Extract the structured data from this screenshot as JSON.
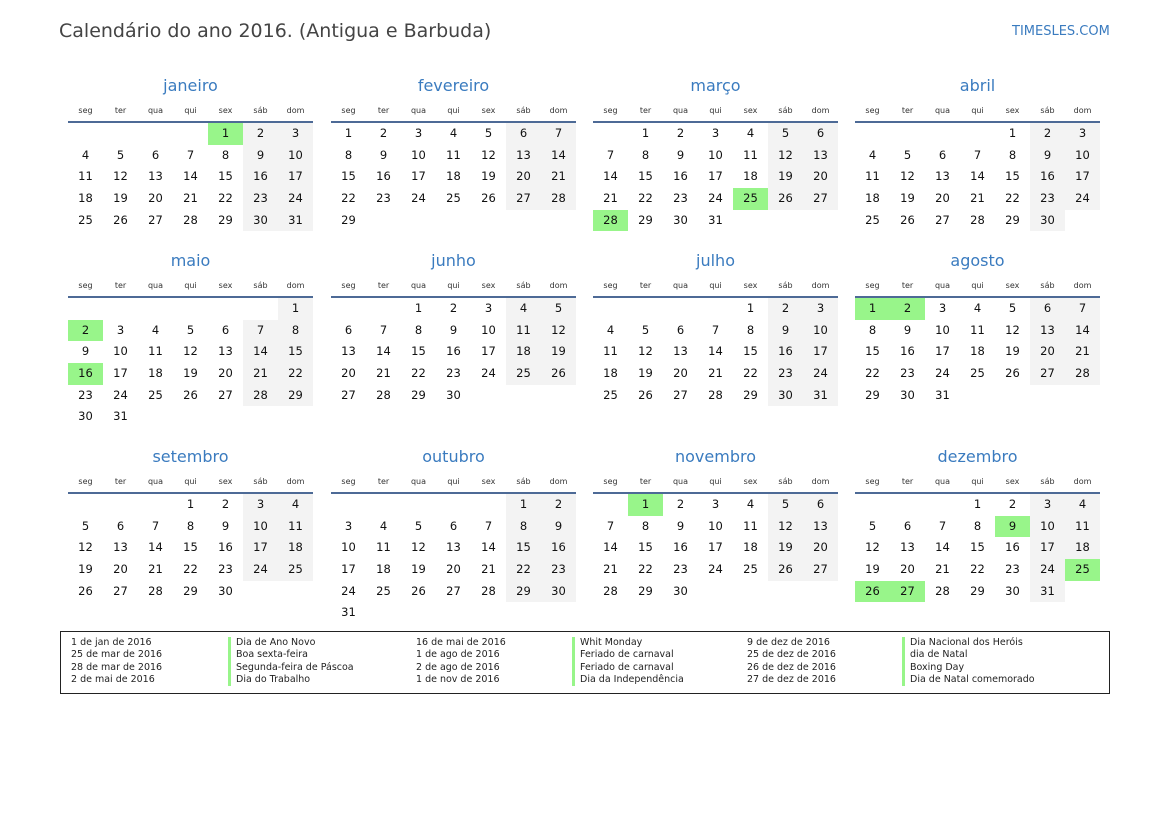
{
  "header": {
    "title": "Calendário do ano 2016. (Antigua e Barbuda)",
    "brand": "TIMESLES.COM"
  },
  "weekdays": [
    "seg",
    "ter",
    "qua",
    "qui",
    "sex",
    "sáb",
    "dom"
  ],
  "colors": {
    "accent": "#3a7bbf",
    "holiday": "#98f58a",
    "weekend": "#f3f3f3"
  },
  "months": [
    {
      "name": "janeiro",
      "first_weekday": 4,
      "days": 31,
      "holidays": [
        1
      ]
    },
    {
      "name": "fevereiro",
      "first_weekday": 0,
      "days": 29,
      "holidays": []
    },
    {
      "name": "março",
      "first_weekday": 1,
      "days": 31,
      "holidays": [
        25,
        28
      ]
    },
    {
      "name": "abril",
      "first_weekday": 4,
      "days": 30,
      "holidays": []
    },
    {
      "name": "maio",
      "first_weekday": 6,
      "days": 31,
      "holidays": [
        2,
        16
      ]
    },
    {
      "name": "junho",
      "first_weekday": 2,
      "days": 30,
      "holidays": []
    },
    {
      "name": "julho",
      "first_weekday": 4,
      "days": 31,
      "holidays": []
    },
    {
      "name": "agosto",
      "first_weekday": 0,
      "days": 31,
      "holidays": [
        1,
        2
      ]
    },
    {
      "name": "setembro",
      "first_weekday": 3,
      "days": 30,
      "holidays": []
    },
    {
      "name": "outubro",
      "first_weekday": 5,
      "days": 31,
      "holidays": []
    },
    {
      "name": "novembro",
      "first_weekday": 1,
      "days": 30,
      "holidays": [
        1
      ]
    },
    {
      "name": "dezembro",
      "first_weekday": 3,
      "days": 31,
      "holidays": [
        9,
        25,
        26,
        27
      ]
    }
  ],
  "legend": [
    {
      "date": "1 de jan de 2016",
      "name": "Dia de Ano Novo"
    },
    {
      "date": "25 de mar de 2016",
      "name": "Boa sexta-feira"
    },
    {
      "date": "28 de mar de 2016",
      "name": "Segunda-feira de Páscoa"
    },
    {
      "date": "2 de mai de 2016",
      "name": "Dia do Trabalho"
    },
    {
      "date": "16 de mai de 2016",
      "name": "Whit Monday"
    },
    {
      "date": "1 de ago de 2016",
      "name": "Feriado de carnaval"
    },
    {
      "date": "2 de ago de 2016",
      "name": "Feriado de carnaval"
    },
    {
      "date": "1 de nov de 2016",
      "name": "Dia da Independência"
    },
    {
      "date": "9 de dez de 2016",
      "name": "Dia Nacional dos Heróis"
    },
    {
      "date": "25 de dez de 2016",
      "name": "dia de Natal"
    },
    {
      "date": "26 de dez de 2016",
      "name": "Boxing Day"
    },
    {
      "date": "27 de dez de 2016",
      "name": "Dia de Natal comemorado"
    }
  ]
}
